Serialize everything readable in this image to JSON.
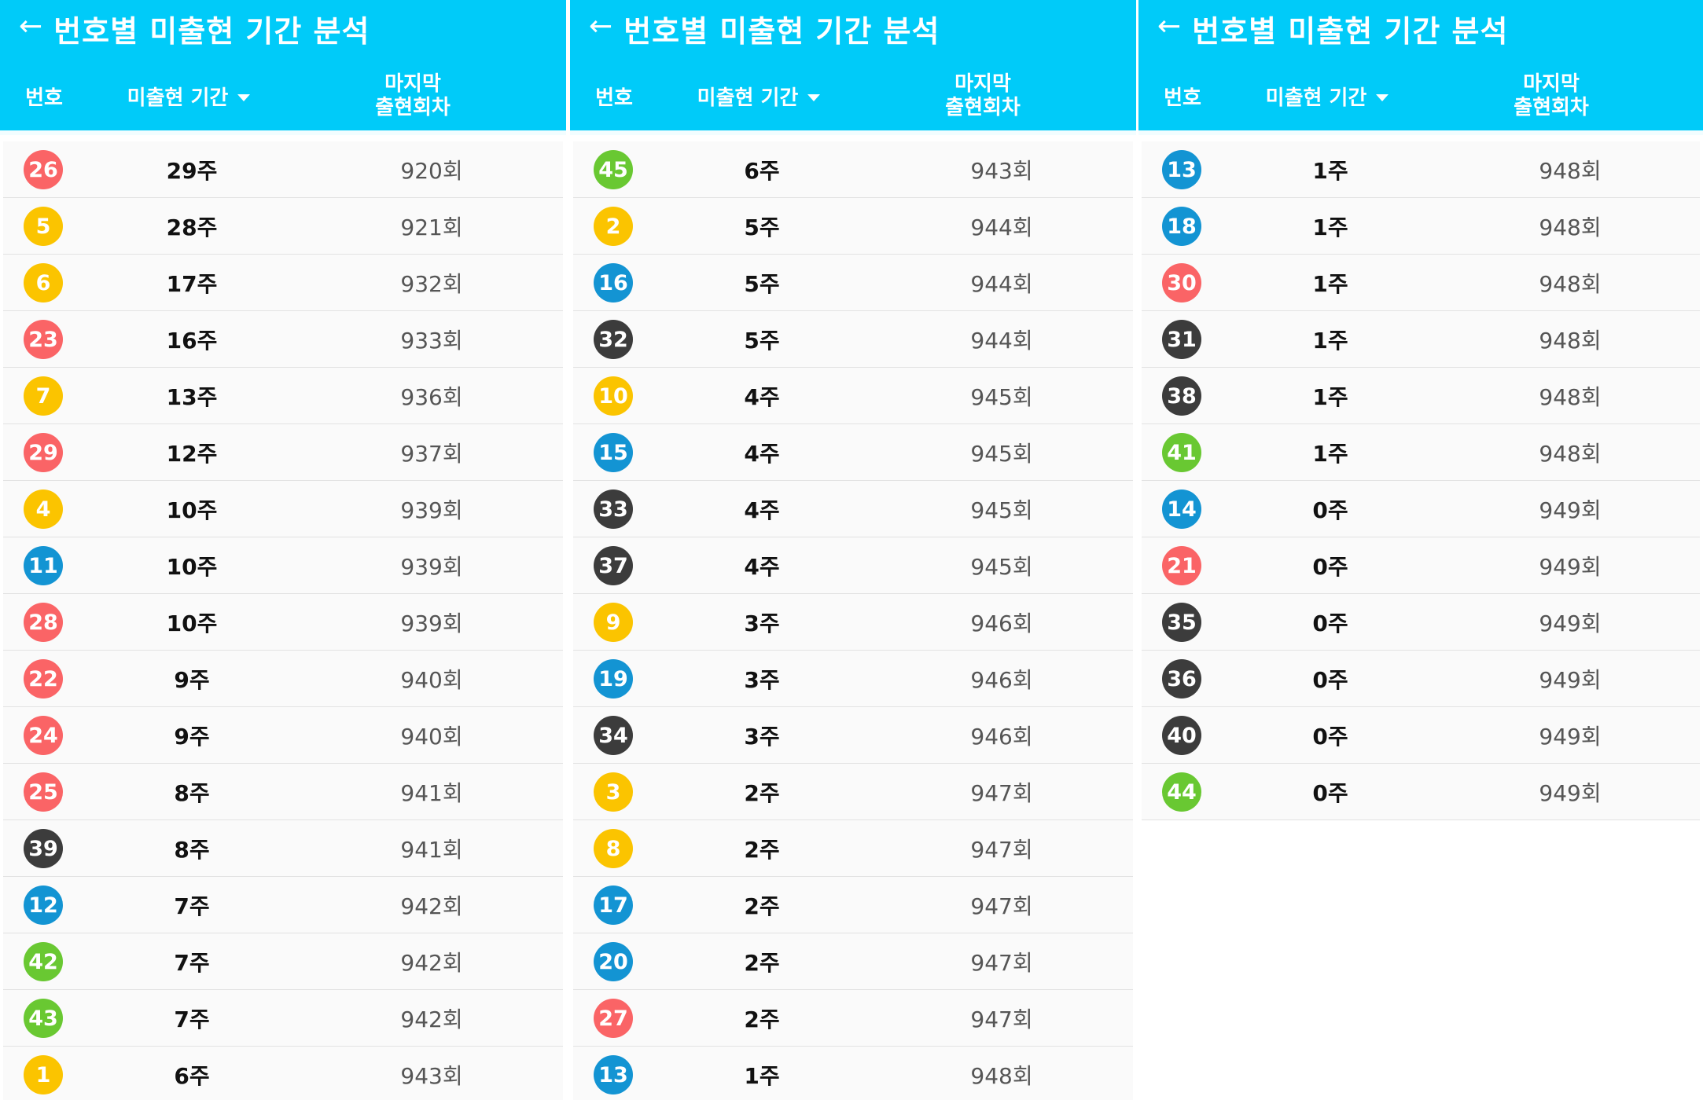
{
  "ui": {
    "title": "번호별 미출현 기간 분석",
    "back_icon": "←",
    "col_number": "번호",
    "col_period": "미출현 기간",
    "col_last_line1": "마지막",
    "col_last_line2": "출현회차"
  },
  "colors": {
    "appbar": "#00cbf9",
    "yellow": "#fbc400",
    "blue": "#1394d3",
    "red": "#fa6466",
    "gray": "#3c3c3c",
    "green": "#69c832"
  },
  "panels": [
    {
      "rows": [
        {
          "number": "26",
          "color": "red",
          "period": "29주",
          "last": "920회"
        },
        {
          "number": "5",
          "color": "yellow",
          "period": "28주",
          "last": "921회"
        },
        {
          "number": "6",
          "color": "yellow",
          "period": "17주",
          "last": "932회"
        },
        {
          "number": "23",
          "color": "red",
          "period": "16주",
          "last": "933회"
        },
        {
          "number": "7",
          "color": "yellow",
          "period": "13주",
          "last": "936회"
        },
        {
          "number": "29",
          "color": "red",
          "period": "12주",
          "last": "937회"
        },
        {
          "number": "4",
          "color": "yellow",
          "period": "10주",
          "last": "939회"
        },
        {
          "number": "11",
          "color": "blue",
          "period": "10주",
          "last": "939회"
        },
        {
          "number": "28",
          "color": "red",
          "period": "10주",
          "last": "939회"
        },
        {
          "number": "22",
          "color": "red",
          "period": "9주",
          "last": "940회"
        },
        {
          "number": "24",
          "color": "red",
          "period": "9주",
          "last": "940회"
        },
        {
          "number": "25",
          "color": "red",
          "period": "8주",
          "last": "941회"
        },
        {
          "number": "39",
          "color": "gray",
          "period": "8주",
          "last": "941회"
        },
        {
          "number": "12",
          "color": "blue",
          "period": "7주",
          "last": "942회"
        },
        {
          "number": "42",
          "color": "green",
          "period": "7주",
          "last": "942회"
        },
        {
          "number": "43",
          "color": "green",
          "period": "7주",
          "last": "942회"
        },
        {
          "number": "1",
          "color": "yellow",
          "period": "6주",
          "last": "943회"
        }
      ]
    },
    {
      "rows": [
        {
          "number": "45",
          "color": "green",
          "period": "6주",
          "last": "943회"
        },
        {
          "number": "2",
          "color": "yellow",
          "period": "5주",
          "last": "944회"
        },
        {
          "number": "16",
          "color": "blue",
          "period": "5주",
          "last": "944회"
        },
        {
          "number": "32",
          "color": "gray",
          "period": "5주",
          "last": "944회"
        },
        {
          "number": "10",
          "color": "yellow",
          "period": "4주",
          "last": "945회"
        },
        {
          "number": "15",
          "color": "blue",
          "period": "4주",
          "last": "945회"
        },
        {
          "number": "33",
          "color": "gray",
          "period": "4주",
          "last": "945회"
        },
        {
          "number": "37",
          "color": "gray",
          "period": "4주",
          "last": "945회"
        },
        {
          "number": "9",
          "color": "yellow",
          "period": "3주",
          "last": "946회"
        },
        {
          "number": "19",
          "color": "blue",
          "period": "3주",
          "last": "946회"
        },
        {
          "number": "34",
          "color": "gray",
          "period": "3주",
          "last": "946회"
        },
        {
          "number": "3",
          "color": "yellow",
          "period": "2주",
          "last": "947회"
        },
        {
          "number": "8",
          "color": "yellow",
          "period": "2주",
          "last": "947회"
        },
        {
          "number": "17",
          "color": "blue",
          "period": "2주",
          "last": "947회"
        },
        {
          "number": "20",
          "color": "blue",
          "period": "2주",
          "last": "947회"
        },
        {
          "number": "27",
          "color": "red",
          "period": "2주",
          "last": "947회"
        },
        {
          "number": "13",
          "color": "blue",
          "period": "1주",
          "last": "948회"
        }
      ]
    },
    {
      "rows": [
        {
          "number": "13",
          "color": "blue",
          "period": "1주",
          "last": "948회"
        },
        {
          "number": "18",
          "color": "blue",
          "period": "1주",
          "last": "948회"
        },
        {
          "number": "30",
          "color": "red",
          "period": "1주",
          "last": "948회"
        },
        {
          "number": "31",
          "color": "gray",
          "period": "1주",
          "last": "948회"
        },
        {
          "number": "38",
          "color": "gray",
          "period": "1주",
          "last": "948회"
        },
        {
          "number": "41",
          "color": "green",
          "period": "1주",
          "last": "948회"
        },
        {
          "number": "14",
          "color": "blue",
          "period": "0주",
          "last": "949회"
        },
        {
          "number": "21",
          "color": "red",
          "period": "0주",
          "last": "949회"
        },
        {
          "number": "35",
          "color": "gray",
          "period": "0주",
          "last": "949회"
        },
        {
          "number": "36",
          "color": "gray",
          "period": "0주",
          "last": "949회"
        },
        {
          "number": "40",
          "color": "gray",
          "period": "0주",
          "last": "949회"
        },
        {
          "number": "44",
          "color": "green",
          "period": "0주",
          "last": "949회"
        }
      ]
    }
  ]
}
